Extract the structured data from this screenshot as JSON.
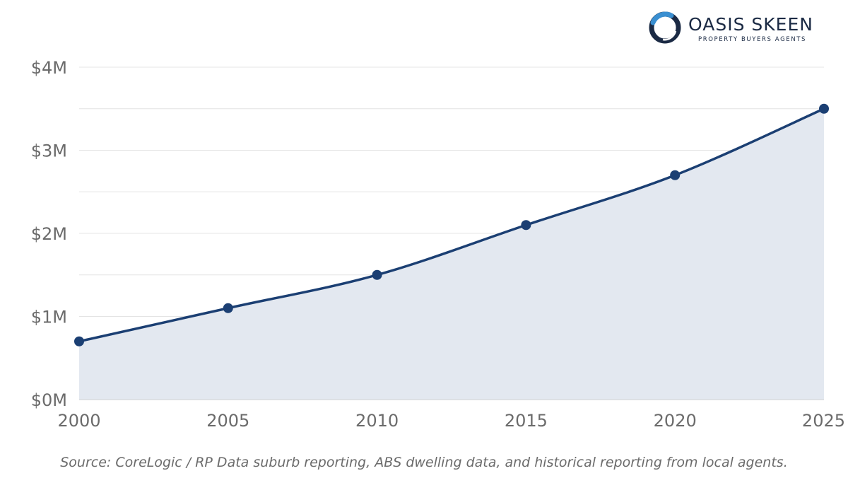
{
  "brand": {
    "name": "OASIS SKEEN",
    "tagline": "PROPERTY BUYERS AGENTS",
    "logo_icon": "ring-swirl-logo-icon",
    "colors": {
      "dark": "#1b2a44",
      "accent": "#3a8fd1"
    }
  },
  "source_note": "Source: CoreLogic / RP Data suburb reporting, ABS dwelling data, and historical reporting from local agents.",
  "chart_data": {
    "type": "area",
    "title": "",
    "xlabel": "",
    "ylabel": "",
    "x": [
      2000,
      2005,
      2010,
      2015,
      2020,
      2025
    ],
    "series": [
      {
        "values": [
          0.7,
          1.1,
          1.5,
          2.1,
          2.7,
          3.5
        ]
      }
    ],
    "y_unit": "$M",
    "xlim": [
      2000,
      2025
    ],
    "ylim": [
      0,
      4
    ],
    "x_ticks": [
      2000,
      2005,
      2010,
      2015,
      2020,
      2025
    ],
    "x_tick_labels": [
      "2000",
      "2005",
      "2010",
      "2015",
      "2020",
      "2025"
    ],
    "y_ticks": [
      0,
      1,
      2,
      3,
      4
    ],
    "y_tick_labels": [
      "$0M",
      "$1M",
      "$2M",
      "$3M",
      "$4M"
    ],
    "minor_gridlines": [
      0.5,
      1.5,
      2.5,
      3.5
    ],
    "grid": true,
    "legend": "none",
    "smooth": true,
    "markers": true,
    "colors": {
      "line": "#1b3f73",
      "fill": "#e3e8f0",
      "grid": "#e4e4e4",
      "axis": "#c9c9c9"
    }
  }
}
